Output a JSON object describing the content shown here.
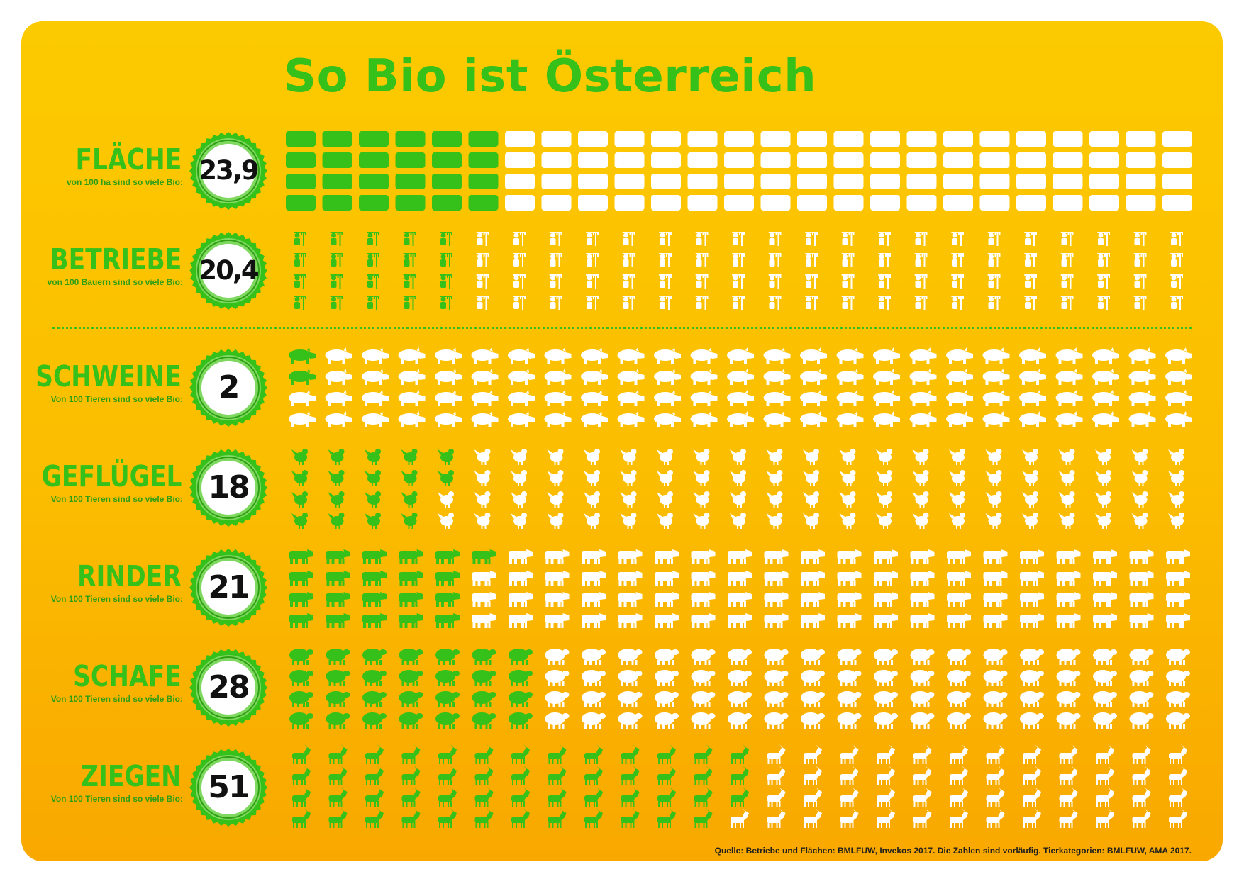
{
  "title": "So Bio ist Österreich",
  "colors": {
    "bio": "#36c01a",
    "non_bio": "#ffffff",
    "background": "#fcc200",
    "badge_ring": "#36c01a"
  },
  "chart_data": {
    "type": "pictogram",
    "unit_total": 100,
    "columns": 25,
    "rows_per_column": 4,
    "series": [
      {
        "key": "flaeche",
        "label": "FLÄCHE",
        "subtitle": "von 100 ha sind so viele Bio:",
        "value_text": "23,9",
        "value": 23.9,
        "icon": "field-rectangle-icon"
      },
      {
        "key": "betriebe",
        "label": "BETRIEBE",
        "subtitle": "von 100 Bauern sind so viele Bio:",
        "value_text": "20,4",
        "value": 20.4,
        "icon": "farmer-icon"
      },
      {
        "key": "schweine",
        "label": "SCHWEINE",
        "subtitle": "Von 100 Tieren sind so viele Bio:",
        "value_text": "2",
        "value": 2,
        "icon": "pig-icon"
      },
      {
        "key": "gefluegel",
        "label": "GEFLÜGEL",
        "subtitle": "Von 100 Tieren sind so viele Bio:",
        "value_text": "18",
        "value": 18,
        "icon": "chicken-icon"
      },
      {
        "key": "rinder",
        "label": "RINDER",
        "subtitle": "Von 100 Tieren sind so viele Bio:",
        "value_text": "21",
        "value": 21,
        "icon": "cow-icon"
      },
      {
        "key": "schafe",
        "label": "SCHAFE",
        "subtitle": "Von 100 Tieren sind so viele Bio:",
        "value_text": "28",
        "value": 28,
        "icon": "sheep-icon"
      },
      {
        "key": "ziegen",
        "label": "ZIEGEN",
        "subtitle": "Von 100 Tieren sind so viele Bio:",
        "value_text": "51",
        "value": 51,
        "icon": "goat-icon"
      }
    ]
  },
  "source": "Quelle: Betriebe und Flächen: BMLFUW, Invekos 2017. Die Zahlen sind vorläufig. Tierkategorien: BMLFUW, AMA 2017."
}
